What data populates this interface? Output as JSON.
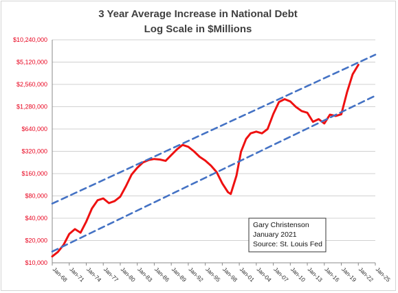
{
  "chart_data": {
    "type": "line",
    "title_line1": "3 Year Average Increase in National Debt",
    "title_line2": "Log Scale in $Millions",
    "xlabel": "",
    "ylabel": "",
    "y_scale": "log2",
    "ylim": [
      10000,
      10240000
    ],
    "yticks": [
      {
        "value": 10000,
        "label": "$10,000"
      },
      {
        "value": 20000,
        "label": "$20,000"
      },
      {
        "value": 40000,
        "label": "$40,000"
      },
      {
        "value": 80000,
        "label": "$80,000"
      },
      {
        "value": 160000,
        "label": "$160,000"
      },
      {
        "value": 320000,
        "label": "$320,000"
      },
      {
        "value": 640000,
        "label": "$640,000"
      },
      {
        "value": 1280000,
        "label": "$1,280,000"
      },
      {
        "value": 2560000,
        "label": "$2,560,000"
      },
      {
        "value": 5120000,
        "label": "$5,120,000"
      },
      {
        "value": 10240000,
        "label": "$10,240,000"
      }
    ],
    "xlim": [
      1968,
      2025
    ],
    "xticks": [
      {
        "value": 1968,
        "label": "Jan-68"
      },
      {
        "value": 1971,
        "label": "Jan-71"
      },
      {
        "value": 1974,
        "label": "Jan-74"
      },
      {
        "value": 1977,
        "label": "Jan-77"
      },
      {
        "value": 1980,
        "label": "Jan-80"
      },
      {
        "value": 1983,
        "label": "Jan-83"
      },
      {
        "value": 1986,
        "label": "Jan-86"
      },
      {
        "value": 1989,
        "label": "Jan-89"
      },
      {
        "value": 1992,
        "label": "Jan-92"
      },
      {
        "value": 1995,
        "label": "Jan-95"
      },
      {
        "value": 1998,
        "label": "Jan-98"
      },
      {
        "value": 2001,
        "label": "Jan-01"
      },
      {
        "value": 2004,
        "label": "Jan-04"
      },
      {
        "value": 2007,
        "label": "Jan-07"
      },
      {
        "value": 2010,
        "label": "Jan-10"
      },
      {
        "value": 2013,
        "label": "Jan-13"
      },
      {
        "value": 2016,
        "label": "Jan-16"
      },
      {
        "value": 2019,
        "label": "Jan-19"
      },
      {
        "value": 2022,
        "label": "Jan-22"
      },
      {
        "value": 2025,
        "label": "Jan-25"
      }
    ],
    "grid": true,
    "series": [
      {
        "color": "#ee1111",
        "style": "solid",
        "points": [
          [
            1968.0,
            12200
          ],
          [
            1969.0,
            14000
          ],
          [
            1970.0,
            17500
          ],
          [
            1971.0,
            24500
          ],
          [
            1972.0,
            28500
          ],
          [
            1973.0,
            25500
          ],
          [
            1974.0,
            36000
          ],
          [
            1975.0,
            54000
          ],
          [
            1976.0,
            70000
          ],
          [
            1977.0,
            74000
          ],
          [
            1978.0,
            64000
          ],
          [
            1979.0,
            68000
          ],
          [
            1980.0,
            78000
          ],
          [
            1981.0,
            108000
          ],
          [
            1982.0,
            155000
          ],
          [
            1983.0,
            192000
          ],
          [
            1984.0,
            226000
          ],
          [
            1985.0,
            244000
          ],
          [
            1986.0,
            252000
          ],
          [
            1987.0,
            248000
          ],
          [
            1988.0,
            238000
          ],
          [
            1989.0,
            285000
          ],
          [
            1990.0,
            340000
          ],
          [
            1991.0,
            390000
          ],
          [
            1992.0,
            368000
          ],
          [
            1993.0,
            320000
          ],
          [
            1994.0,
            270000
          ],
          [
            1995.0,
            240000
          ],
          [
            1996.0,
            205000
          ],
          [
            1997.0,
            168000
          ],
          [
            1998.0,
            118000
          ],
          [
            1999.0,
            90000
          ],
          [
            1999.5,
            85000
          ],
          [
            2000.5,
            150000
          ],
          [
            2001.3,
            315000
          ],
          [
            2002.2,
            470000
          ],
          [
            2003.0,
            560000
          ],
          [
            2004.0,
            590000
          ],
          [
            2005.0,
            560000
          ],
          [
            2006.0,
            640000
          ],
          [
            2007.0,
            1020000
          ],
          [
            2008.0,
            1480000
          ],
          [
            2009.0,
            1620000
          ],
          [
            2010.0,
            1510000
          ],
          [
            2011.0,
            1270000
          ],
          [
            2012.0,
            1120000
          ],
          [
            2013.0,
            1060000
          ],
          [
            2014.0,
            800000
          ],
          [
            2015.0,
            870000
          ],
          [
            2016.0,
            760000
          ],
          [
            2017.0,
            1000000
          ],
          [
            2018.0,
            960000
          ],
          [
            2019.0,
            1010000
          ],
          [
            2020.0,
            2000000
          ],
          [
            2021.0,
            3500000
          ],
          [
            2022.0,
            4700000
          ]
        ]
      },
      {
        "color": "#4472c4",
        "style": "dashed",
        "points": [
          [
            1968.0,
            63000
          ],
          [
            2025.0,
            6450000
          ]
        ]
      },
      {
        "color": "#4472c4",
        "style": "dashed",
        "points": [
          [
            1968.0,
            14200
          ],
          [
            2025.0,
            1800000
          ]
        ]
      }
    ],
    "annotation": [
      "Gary Christenson",
      "January 2021",
      "Source: St. Louis Fed"
    ]
  },
  "colors": {
    "data_line": "#ee1111",
    "trend_line": "#4472c4",
    "ytick_text": "#e8001c",
    "grid": "#d0d0d0"
  }
}
